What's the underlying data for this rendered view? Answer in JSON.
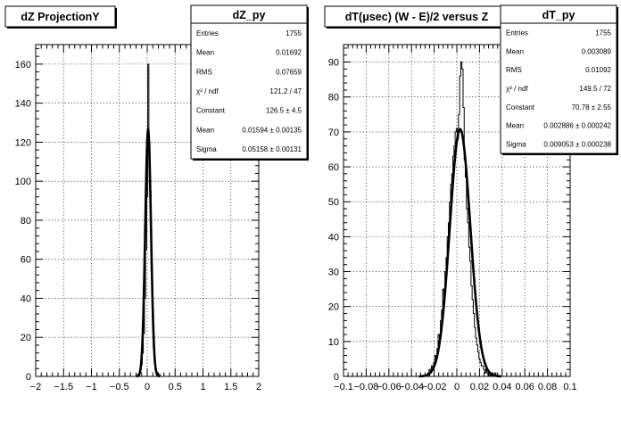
{
  "footer_text": "",
  "chart_data": [
    {
      "type": "histogram",
      "title": "dZ ProjectionY",
      "xlabel": "",
      "ylabel": "",
      "xlim": [
        -2,
        2
      ],
      "ylim": [
        0,
        170
      ],
      "x_ticks": [
        -2,
        -1.5,
        -1,
        -0.5,
        0,
        0.5,
        1,
        1.5,
        2
      ],
      "x_tick_labels": [
        "−2",
        "−1.5",
        "−1",
        "−0.5",
        "0",
        "0.5",
        "1",
        "1.5",
        "2"
      ],
      "y_ticks": [
        0,
        20,
        40,
        60,
        80,
        100,
        120,
        140,
        160
      ],
      "y_tick_labels": [
        "0",
        "20",
        "40",
        "60",
        "80",
        "100",
        "120",
        "140",
        "160"
      ],
      "grid": true,
      "bin_width": 0.02,
      "bins": [
        {
          "x": -0.18,
          "y": 0
        },
        {
          "x": -0.16,
          "y": 1
        },
        {
          "x": -0.14,
          "y": 1
        },
        {
          "x": -0.12,
          "y": 3
        },
        {
          "x": -0.1,
          "y": 6
        },
        {
          "x": -0.08,
          "y": 12
        },
        {
          "x": -0.06,
          "y": 22
        },
        {
          "x": -0.04,
          "y": 40
        },
        {
          "x": -0.02,
          "y": 65
        },
        {
          "x": 0.0,
          "y": 92
        },
        {
          "x": 0.02,
          "y": 160
        },
        {
          "x": 0.04,
          "y": 120
        },
        {
          "x": 0.06,
          "y": 95
        },
        {
          "x": 0.08,
          "y": 55
        },
        {
          "x": 0.1,
          "y": 30
        },
        {
          "x": 0.12,
          "y": 15
        },
        {
          "x": 0.14,
          "y": 7
        },
        {
          "x": 0.16,
          "y": 3
        },
        {
          "x": 0.18,
          "y": 2
        },
        {
          "x": 0.2,
          "y": 1
        },
        {
          "x": 0.22,
          "y": 1
        },
        {
          "x": 0.24,
          "y": 0
        }
      ],
      "fit": {
        "function": "gaus",
        "constant": 126.5,
        "mean": 0.01594,
        "sigma": 0.05158
      },
      "stats": {
        "name": "dZ_py",
        "rows": [
          {
            "label": "Entries",
            "value": "1755"
          },
          {
            "label": "Mean",
            "value": "0.01692"
          },
          {
            "label": "RMS",
            "value": "0.07659"
          },
          {
            "label": "χ² / ndf",
            "value": "121.2 / 47"
          },
          {
            "label": "Constant",
            "value": "126.5 ± 4.5"
          },
          {
            "label": "Mean",
            "value": "0.01594 ± 0.00135"
          },
          {
            "label": "Sigma",
            "value": "0.05158 ± 0.00131"
          }
        ]
      }
    },
    {
      "type": "histogram",
      "title": "dT(μsec) (W - E)/2 versus Z",
      "xlabel": "",
      "ylabel": "",
      "xlim": [
        -0.1,
        0.1
      ],
      "ylim": [
        0,
        95
      ],
      "x_ticks": [
        -0.1,
        -0.08,
        -0.06,
        -0.04,
        -0.02,
        0,
        0.02,
        0.04,
        0.06,
        0.08,
        0.1
      ],
      "x_tick_labels": [
        "−0.1",
        "−0.08",
        "−0.06",
        "−0.04",
        "−0.02",
        "0",
        "0.02",
        "0.04",
        "0.06",
        "0.08",
        "0.1"
      ],
      "y_ticks": [
        0,
        10,
        20,
        30,
        40,
        50,
        60,
        70,
        80,
        90
      ],
      "y_tick_labels": [
        "0",
        "10",
        "20",
        "30",
        "40",
        "50",
        "60",
        "70",
        "80",
        "90"
      ],
      "grid": true,
      "bin_width": 0.001,
      "bins": [
        {
          "x": -0.026,
          "y": 0
        },
        {
          "x": -0.025,
          "y": 1
        },
        {
          "x": -0.024,
          "y": 2
        },
        {
          "x": -0.023,
          "y": 1
        },
        {
          "x": -0.022,
          "y": 3
        },
        {
          "x": -0.021,
          "y": 2
        },
        {
          "x": -0.02,
          "y": 4
        },
        {
          "x": -0.019,
          "y": 6
        },
        {
          "x": -0.018,
          "y": 5
        },
        {
          "x": -0.017,
          "y": 8
        },
        {
          "x": -0.016,
          "y": 12
        },
        {
          "x": -0.015,
          "y": 11
        },
        {
          "x": -0.014,
          "y": 16
        },
        {
          "x": -0.013,
          "y": 19
        },
        {
          "x": -0.012,
          "y": 25
        },
        {
          "x": -0.011,
          "y": 23
        },
        {
          "x": -0.01,
          "y": 30
        },
        {
          "x": -0.009,
          "y": 34
        },
        {
          "x": -0.008,
          "y": 40
        },
        {
          "x": -0.007,
          "y": 44
        },
        {
          "x": -0.006,
          "y": 50
        },
        {
          "x": -0.005,
          "y": 55
        },
        {
          "x": -0.004,
          "y": 58
        },
        {
          "x": -0.003,
          "y": 63
        },
        {
          "x": -0.002,
          "y": 66
        },
        {
          "x": -0.001,
          "y": 70
        },
        {
          "x": 0.0,
          "y": 71
        },
        {
          "x": 0.001,
          "y": 68
        },
        {
          "x": 0.002,
          "y": 75
        },
        {
          "x": 0.003,
          "y": 86
        },
        {
          "x": 0.004,
          "y": 90
        },
        {
          "x": 0.005,
          "y": 88
        },
        {
          "x": 0.006,
          "y": 77
        },
        {
          "x": 0.007,
          "y": 62
        },
        {
          "x": 0.008,
          "y": 57
        },
        {
          "x": 0.009,
          "y": 48
        },
        {
          "x": 0.01,
          "y": 44
        },
        {
          "x": 0.011,
          "y": 37
        },
        {
          "x": 0.012,
          "y": 33
        },
        {
          "x": 0.013,
          "y": 26
        },
        {
          "x": 0.014,
          "y": 22
        },
        {
          "x": 0.015,
          "y": 18
        },
        {
          "x": 0.016,
          "y": 14
        },
        {
          "x": 0.017,
          "y": 11
        },
        {
          "x": 0.018,
          "y": 9
        },
        {
          "x": 0.019,
          "y": 7
        },
        {
          "x": 0.02,
          "y": 5
        },
        {
          "x": 0.021,
          "y": 4
        },
        {
          "x": 0.022,
          "y": 3
        },
        {
          "x": 0.023,
          "y": 3
        },
        {
          "x": 0.024,
          "y": 2
        },
        {
          "x": 0.025,
          "y": 1
        },
        {
          "x": 0.026,
          "y": 2
        },
        {
          "x": 0.027,
          "y": 1
        },
        {
          "x": 0.028,
          "y": 0
        },
        {
          "x": 0.029,
          "y": 1
        },
        {
          "x": 0.03,
          "y": 0
        },
        {
          "x": 0.031,
          "y": 1
        },
        {
          "x": 0.032,
          "y": 0
        },
        {
          "x": 0.033,
          "y": 0
        },
        {
          "x": 0.034,
          "y": 1
        },
        {
          "x": 0.035,
          "y": 0
        },
        {
          "x": 0.036,
          "y": 0
        }
      ],
      "fit": {
        "function": "gaus",
        "constant": 70.78,
        "mean": 0.002886,
        "sigma": 0.009053
      },
      "stats": {
        "name": "dT_py",
        "rows": [
          {
            "label": "Entries",
            "value": "1755"
          },
          {
            "label": "Mean",
            "value": "0.003089"
          },
          {
            "label": "RMS",
            "value": "0.01092"
          },
          {
            "label": "χ² / ndf",
            "value": "149.5 / 72"
          },
          {
            "label": "Constant",
            "value": "70.78 ± 2.55"
          },
          {
            "label": "Mean",
            "value": "0.002886 ± 0.000242"
          },
          {
            "label": "Sigma",
            "value": "0.009053 ± 0.000238"
          }
        ]
      }
    }
  ]
}
